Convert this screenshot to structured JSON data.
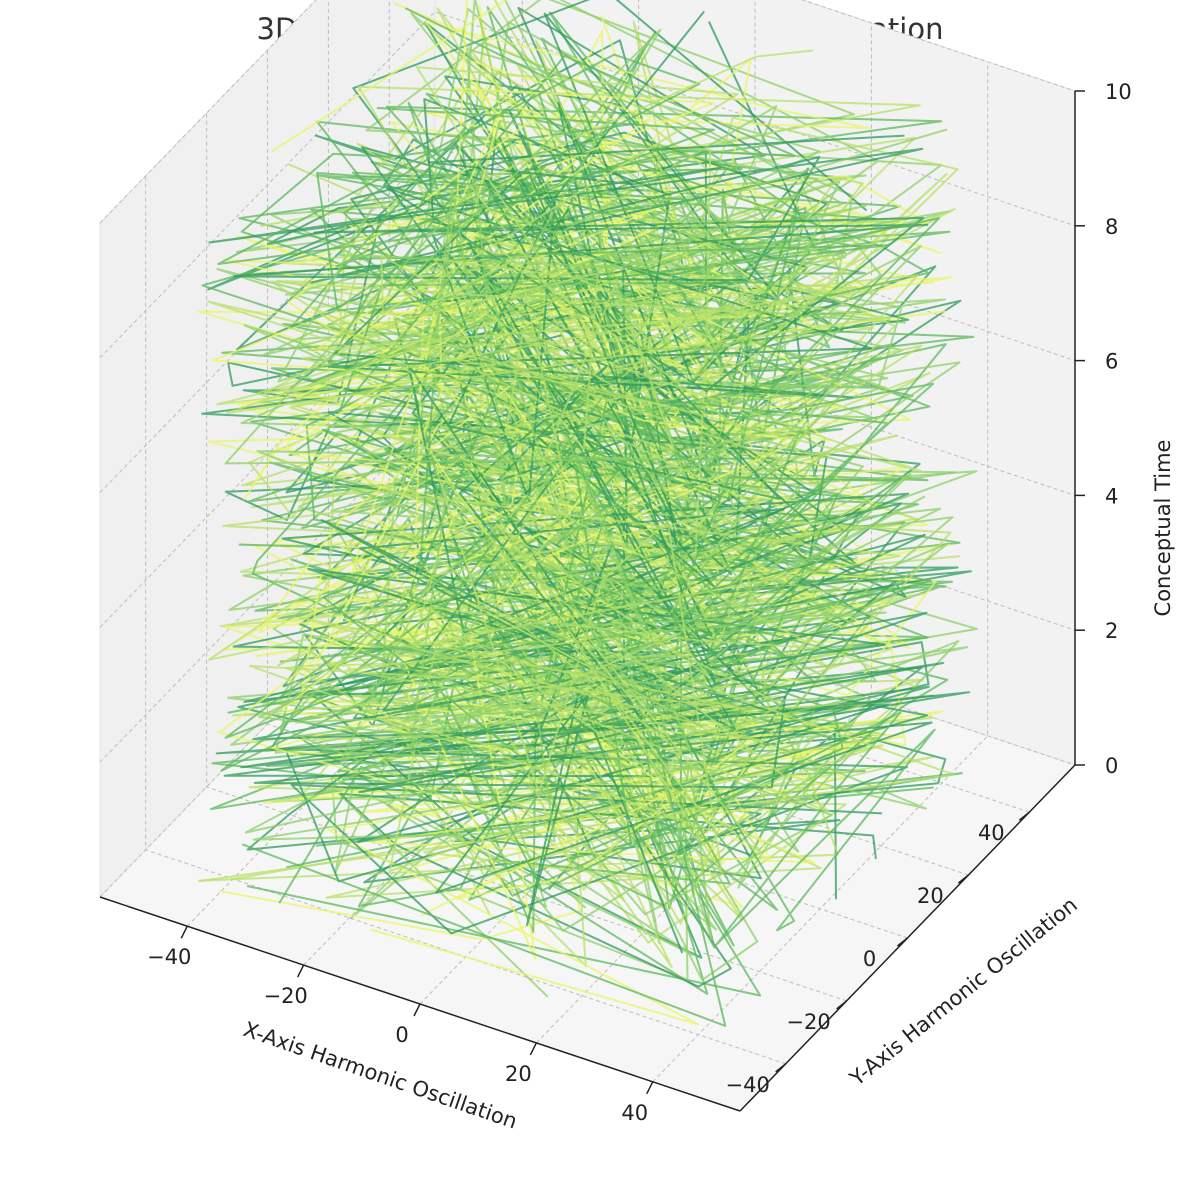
{
  "chart_data": {
    "type": "line",
    "projection": "3d",
    "title": "3D Quantum Harmonic Oscillation Visualization",
    "xlabel": "X-Axis Harmonic Oscillation",
    "ylabel": "Y-Axis Harmonic Oscillation",
    "zlabel": "Conceptual Time",
    "xlim": [
      -55,
      55
    ],
    "ylim": [
      -55,
      55
    ],
    "zlim": [
      0,
      10
    ],
    "x_ticks": [
      "−40",
      "−20",
      "0",
      "20",
      "40"
    ],
    "y_ticks": [
      "−40",
      "−20",
      "0",
      "20",
      "40"
    ],
    "z_ticks": [
      "0",
      "2",
      "4",
      "6",
      "8",
      "10"
    ],
    "grid": true,
    "colormap": "summer",
    "line_colors": [
      "#2e9a5e",
      "#5cb85c",
      "#8dd06a",
      "#b8e06a",
      "#e8f56a"
    ],
    "series": [
      {
        "x_amplitude": 45,
        "y_amplitude": 45,
        "z_range": [
          0,
          10
        ]
      }
    ]
  }
}
